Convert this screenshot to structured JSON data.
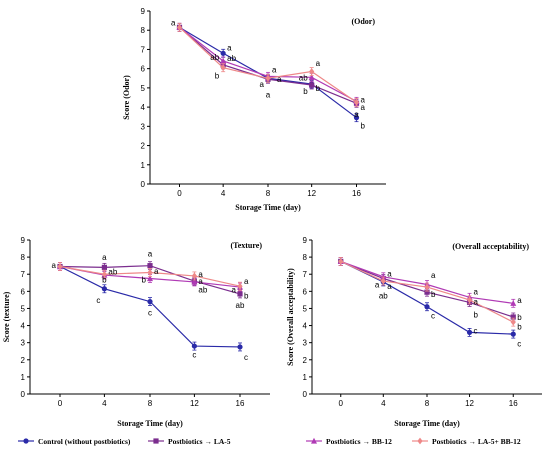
{
  "colors": {
    "control": "#2a2aa8",
    "la5": "#7b2d8e",
    "bb12": "#b03ab5",
    "la5bb12": "#ee8888"
  },
  "legend": [
    {
      "key": "control",
      "label": "Control (without postbiotics)",
      "marker": "circle"
    },
    {
      "key": "la5",
      "label": "Postbiotics → LA-5",
      "marker": "square"
    },
    {
      "key": "bb12",
      "label": "Postbiotics → BB-12",
      "marker": "triangle"
    },
    {
      "key": "la5bb12",
      "label": "Postbiotics → LA-5+ BB-12",
      "marker": "diamond"
    }
  ],
  "chart_data": [
    {
      "type": "line",
      "title": "(Odor)",
      "xlabel": "Storage Time (day)",
      "ylabel": "Score (Odor)",
      "x": [
        0,
        4,
        8,
        12,
        16
      ],
      "xticks": [
        "0",
        "4",
        "8",
        "12",
        "16"
      ],
      "ylim": [
        0,
        9
      ],
      "yticks": [
        "0",
        "1",
        "2",
        "3",
        "4",
        "5",
        "6",
        "7",
        "8",
        "9"
      ],
      "series": [
        {
          "key": "control",
          "values": [
            8.15,
            6.8,
            5.5,
            5.2,
            3.45
          ]
        },
        {
          "key": "la5",
          "values": [
            8.15,
            6.2,
            5.45,
            5.15,
            4.2
          ]
        },
        {
          "key": "bb12",
          "values": [
            8.15,
            6.4,
            5.6,
            5.55,
            4.3
          ]
        },
        {
          "key": "la5bb12",
          "values": [
            8.15,
            6.05,
            5.5,
            5.85,
            4.25
          ]
        }
      ],
      "letters": [
        {
          "x": 0,
          "y": 8.4,
          "text": "a",
          "side": "left"
        },
        {
          "x": 4,
          "y": 7.1,
          "text": "a",
          "side": "right"
        },
        {
          "x": 4,
          "y": 6.6,
          "text": "ab",
          "side": "left"
        },
        {
          "x": 4,
          "y": 6.55,
          "text": "ab",
          "side": "right"
        },
        {
          "x": 4,
          "y": 5.65,
          "text": "b",
          "side": "left"
        },
        {
          "x": 8,
          "y": 5.95,
          "text": "a",
          "side": "right"
        },
        {
          "x": 8,
          "y": 5.45,
          "text": "a",
          "side": "right2"
        },
        {
          "x": 8,
          "y": 5.2,
          "text": "a",
          "side": "left"
        },
        {
          "x": 8,
          "y": 4.65,
          "text": "a",
          "side": "center"
        },
        {
          "x": 12,
          "y": 6.3,
          "text": "a",
          "side": "right"
        },
        {
          "x": 12,
          "y": 5.55,
          "text": "ab",
          "side": "left"
        },
        {
          "x": 12,
          "y": 5.0,
          "text": "b",
          "side": "right"
        },
        {
          "x": 12,
          "y": 4.85,
          "text": "b",
          "side": "left"
        },
        {
          "x": 16,
          "y": 4.4,
          "text": "a",
          "side": "right"
        },
        {
          "x": 16,
          "y": 4.0,
          "text": "a",
          "side": "right"
        },
        {
          "x": 16,
          "y": 3.65,
          "text": "a",
          "side": "center"
        },
        {
          "x": 16,
          "y": 3.05,
          "text": "b",
          "side": "right"
        }
      ]
    },
    {
      "type": "line",
      "title": "(Texture)",
      "xlabel": "Storage Time (day)",
      "ylabel": "Score (texture)",
      "x": [
        0,
        4,
        8,
        12,
        16
      ],
      "xticks": [
        "0",
        "4",
        "8",
        "12",
        "16"
      ],
      "ylim": [
        0,
        9
      ],
      "yticks": [
        "0",
        "1",
        "2",
        "3",
        "4",
        "5",
        "6",
        "7",
        "8",
        "9"
      ],
      "series": [
        {
          "key": "control",
          "values": [
            7.45,
            6.15,
            5.4,
            2.8,
            2.75
          ]
        },
        {
          "key": "la5",
          "values": [
            7.45,
            7.4,
            7.5,
            6.6,
            5.85
          ]
        },
        {
          "key": "bb12",
          "values": [
            7.45,
            6.95,
            6.75,
            6.55,
            6.25
          ]
        },
        {
          "key": "la5bb12",
          "values": [
            7.45,
            7.0,
            7.1,
            6.9,
            6.3
          ]
        }
      ],
      "letters": [
        {
          "x": 0,
          "y": 7.55,
          "text": "a",
          "side": "left"
        },
        {
          "x": 4,
          "y": 8.0,
          "text": "a",
          "side": "center"
        },
        {
          "x": 4,
          "y": 7.15,
          "text": "ab",
          "side": "right"
        },
        {
          "x": 4,
          "y": 6.7,
          "text": "b",
          "side": "center"
        },
        {
          "x": 4,
          "y": 5.5,
          "text": "c",
          "side": "left"
        },
        {
          "x": 8,
          "y": 8.2,
          "text": "a",
          "side": "center"
        },
        {
          "x": 8,
          "y": 7.2,
          "text": "a",
          "side": "right"
        },
        {
          "x": 8,
          "y": 6.7,
          "text": "b",
          "side": "left"
        },
        {
          "x": 8,
          "y": 4.75,
          "text": "c",
          "side": "center"
        },
        {
          "x": 12,
          "y": 7.0,
          "text": "a",
          "side": "right"
        },
        {
          "x": 12,
          "y": 6.6,
          "text": "a",
          "side": "right"
        },
        {
          "x": 12,
          "y": 6.1,
          "text": "ab",
          "side": "right"
        },
        {
          "x": 12,
          "y": 2.3,
          "text": "c",
          "side": "center"
        },
        {
          "x": 16,
          "y": 6.6,
          "text": "a",
          "side": "right"
        },
        {
          "x": 16,
          "y": 6.1,
          "text": "a",
          "side": "left"
        },
        {
          "x": 16,
          "y": 5.75,
          "text": "b",
          "side": "right"
        },
        {
          "x": 16,
          "y": 5.2,
          "text": "ab",
          "side": "center"
        },
        {
          "x": 16,
          "y": 2.15,
          "text": "c",
          "side": "right"
        }
      ]
    },
    {
      "type": "line",
      "title": "(Overall acceptability)",
      "xlabel": "Storage Time (day)",
      "ylabel": "Score (Overall acceptability)",
      "x": [
        0,
        4,
        8,
        12,
        16
      ],
      "xticks": [
        "0",
        "4",
        "8",
        "12",
        "16"
      ],
      "ylim": [
        0,
        9
      ],
      "yticks": [
        "0",
        "1",
        "2",
        "3",
        "4",
        "5",
        "6",
        "7",
        "8",
        "9"
      ],
      "series": [
        {
          "key": "control",
          "values": [
            7.75,
            6.55,
            5.1,
            3.6,
            3.5
          ]
        },
        {
          "key": "la5",
          "values": [
            7.75,
            6.75,
            5.95,
            5.35,
            4.5
          ]
        },
        {
          "key": "bb12",
          "values": [
            7.75,
            6.85,
            6.4,
            5.65,
            5.3
          ]
        },
        {
          "key": "la5bb12",
          "values": [
            7.75,
            6.6,
            6.25,
            5.5,
            4.2
          ]
        }
      ],
      "letters": [
        {
          "x": 4,
          "y": 7.05,
          "text": "a",
          "side": "right"
        },
        {
          "x": 4,
          "y": 6.4,
          "text": "a",
          "side": "left"
        },
        {
          "x": 4,
          "y": 6.3,
          "text": "a",
          "side": "right"
        },
        {
          "x": 4,
          "y": 5.75,
          "text": "ab",
          "side": "center"
        },
        {
          "x": 8,
          "y": 6.95,
          "text": "a",
          "side": "right"
        },
        {
          "x": 8,
          "y": 5.85,
          "text": "b",
          "side": "right"
        },
        {
          "x": 8,
          "y": 4.6,
          "text": "c",
          "side": "right"
        },
        {
          "x": 12,
          "y": 6.0,
          "text": "a",
          "side": "right"
        },
        {
          "x": 12,
          "y": 5.4,
          "text": "a",
          "side": "right"
        },
        {
          "x": 12,
          "y": 4.65,
          "text": "b",
          "side": "right"
        },
        {
          "x": 12,
          "y": 3.7,
          "text": "c",
          "side": "right"
        },
        {
          "x": 16,
          "y": 5.5,
          "text": "a",
          "side": "right"
        },
        {
          "x": 16,
          "y": 4.5,
          "text": "b",
          "side": "right"
        },
        {
          "x": 16,
          "y": 3.95,
          "text": "b",
          "side": "right"
        },
        {
          "x": 16,
          "y": 2.95,
          "text": "c",
          "side": "right"
        }
      ]
    }
  ]
}
